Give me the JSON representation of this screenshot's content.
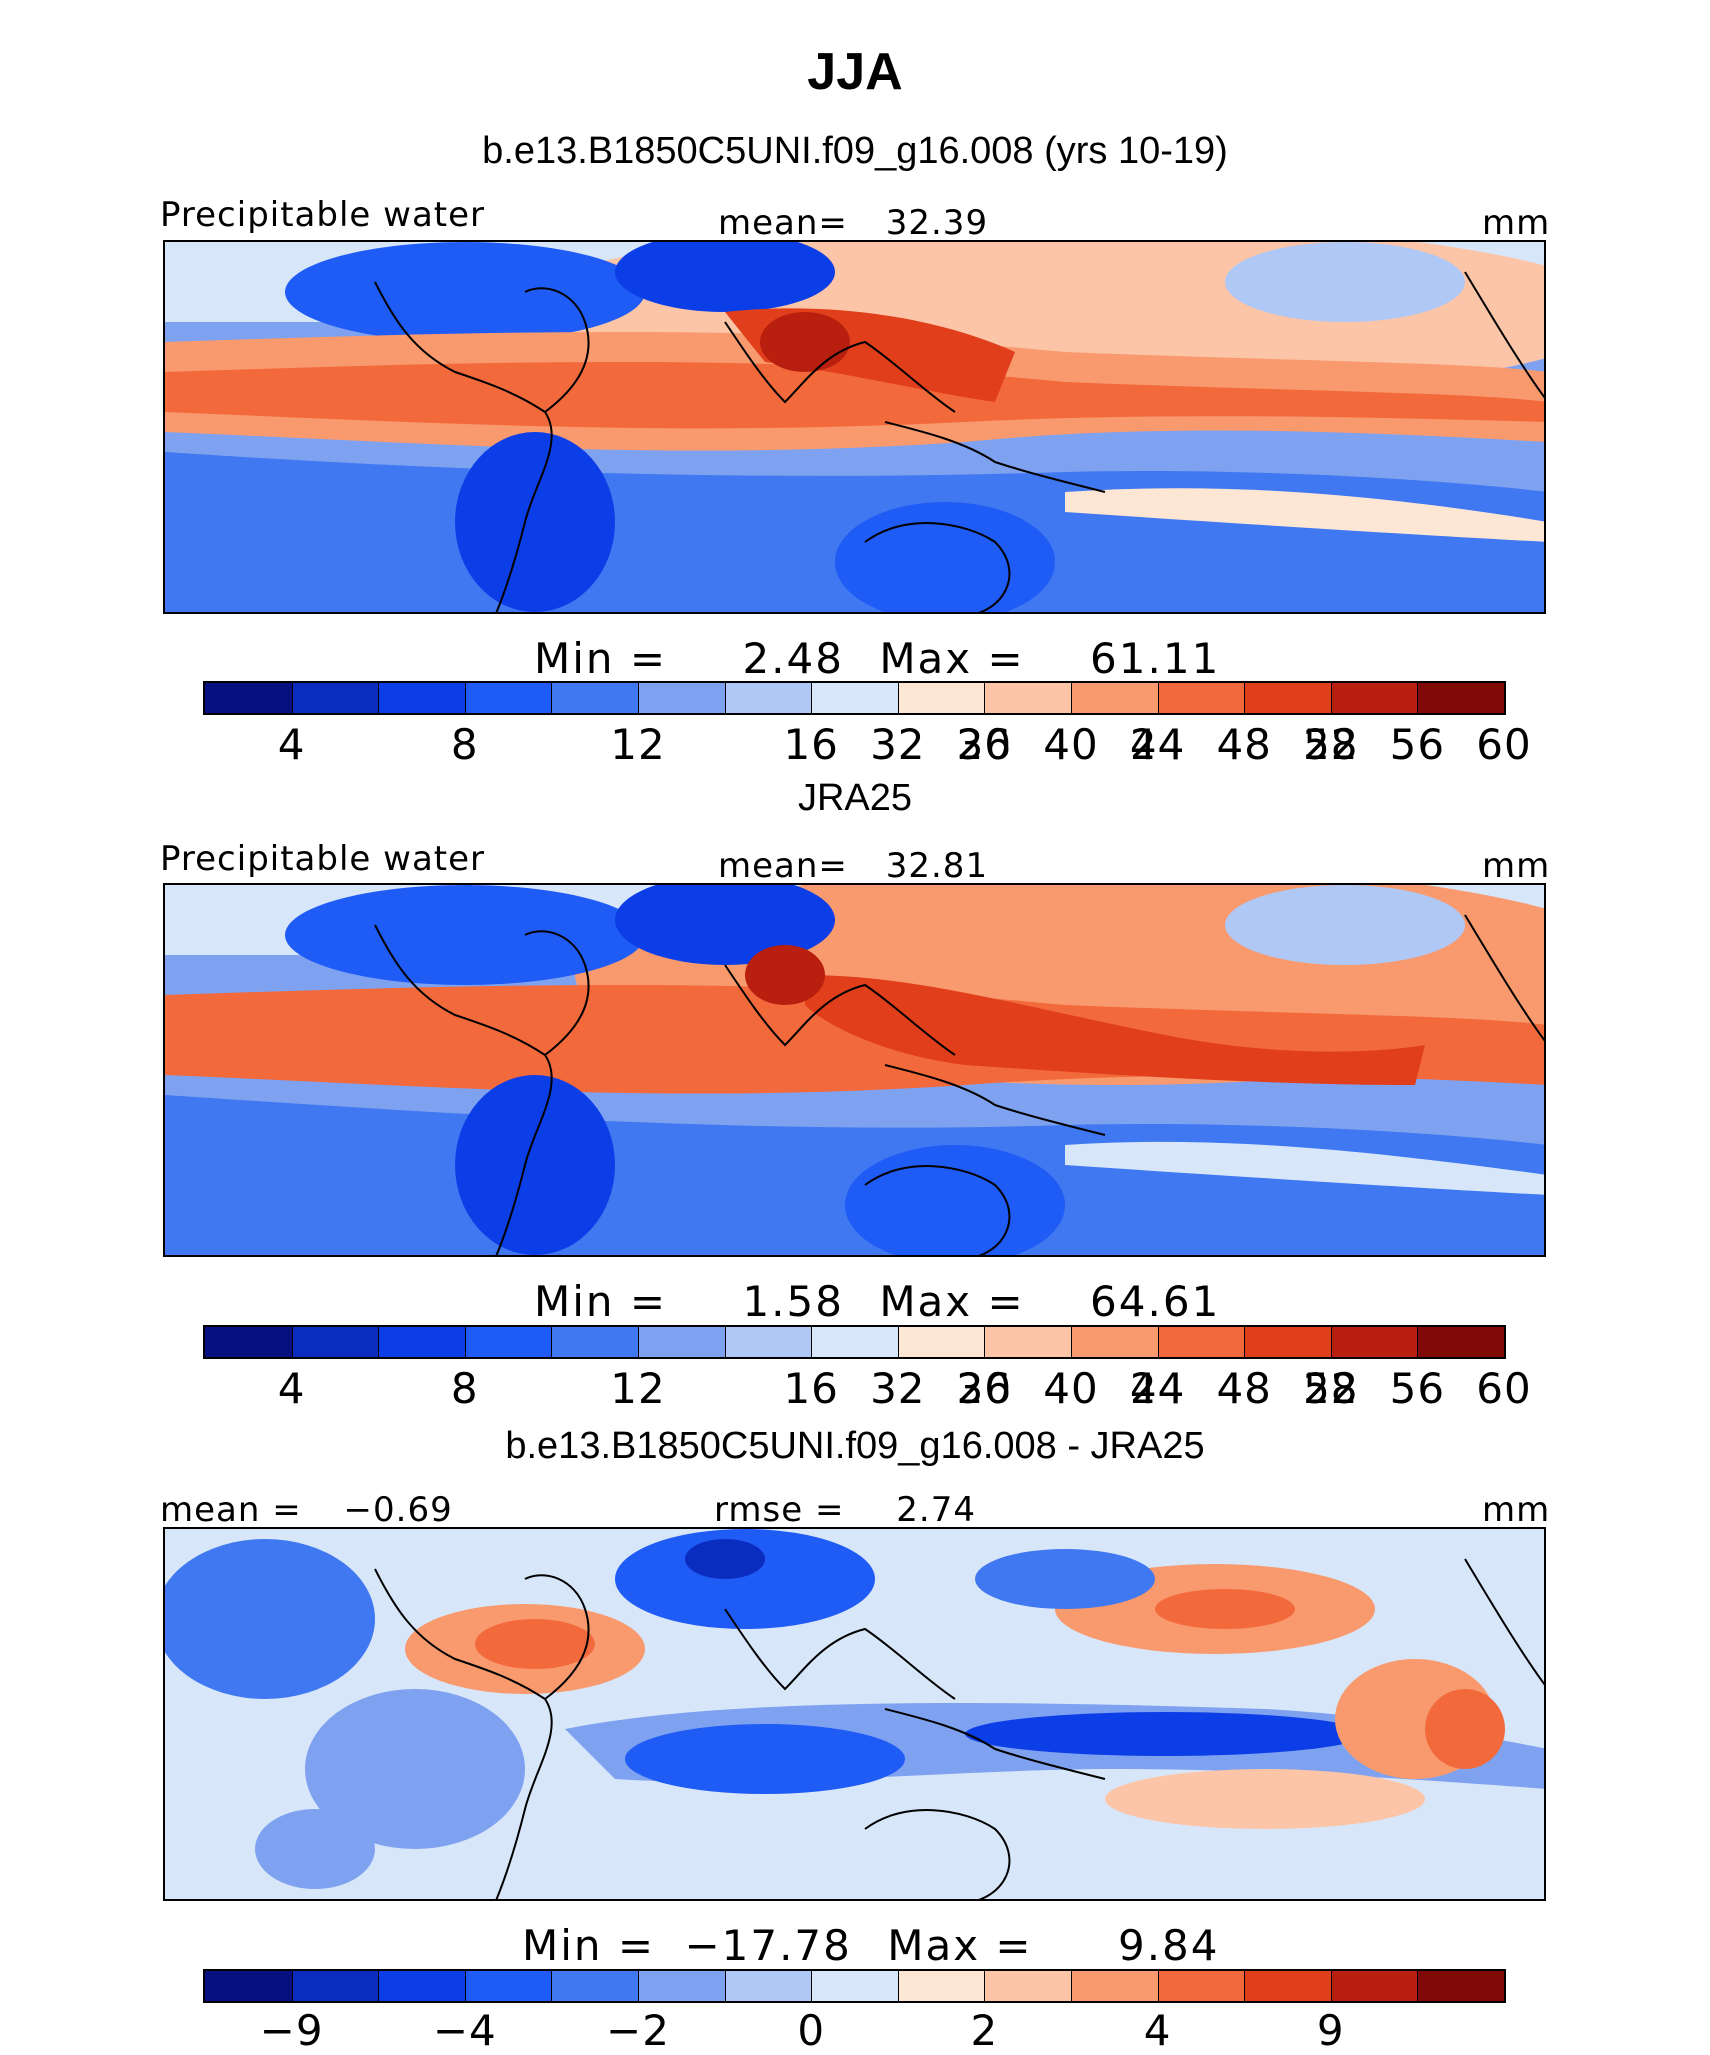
{
  "figure": {
    "season": "JJA"
  },
  "chart_data": [
    {
      "type": "heatmap",
      "subtitle": "b.e13.B1850C5UNI.f09_g16.008 (yrs 10-19)",
      "variable": "Precipitable water",
      "mean_label": "mean=",
      "mean": "32.39",
      "units": "mm",
      "min_label": "Min =",
      "min": "2.48",
      "max_label": "Max =",
      "max": "61.11",
      "colorbar_ticks": [
        "4",
        "8",
        "12",
        "16",
        "20",
        "24",
        "28",
        "32",
        "36",
        "40",
        "44",
        "48",
        "52",
        "56",
        "60"
      ],
      "colorbar_colors": [
        "#06107f",
        "#0a2dc0",
        "#0b3ee6",
        "#1f5bf5",
        "#3f78f0",
        "#7fa2f0",
        "#b0c8f5",
        "#d8e6fa",
        "#fde6d4",
        "#fcc5a7",
        "#f89a6e",
        "#f26a3c",
        "#e13e1b",
        "#b81f0e",
        "#810a08"
      ],
      "lon_range": [
        -20,
        285
      ],
      "lat_range": [
        -40,
        40
      ]
    },
    {
      "type": "heatmap",
      "subtitle": "JRA25",
      "variable": "Precipitable water",
      "mean_label": "mean=",
      "mean": "32.81",
      "units": "mm",
      "min_label": "Min =",
      "min": "1.58",
      "max_label": "Max =",
      "max": "64.61",
      "colorbar_ticks": [
        "4",
        "8",
        "12",
        "16",
        "20",
        "24",
        "28",
        "32",
        "36",
        "40",
        "44",
        "48",
        "52",
        "56",
        "60"
      ],
      "colorbar_colors": [
        "#06107f",
        "#0a2dc0",
        "#0b3ee6",
        "#1f5bf5",
        "#3f78f0",
        "#7fa2f0",
        "#b0c8f5",
        "#d8e6fa",
        "#fde6d4",
        "#fcc5a7",
        "#f89a6e",
        "#f26a3c",
        "#e13e1b",
        "#b81f0e",
        "#810a08"
      ],
      "lon_range": [
        -20,
        285
      ],
      "lat_range": [
        -40,
        40
      ]
    },
    {
      "type": "heatmap",
      "subtitle": "b.e13.B1850C5UNI.f09_g16.008 - JRA25",
      "mean_label": "mean =",
      "mean": "−0.69",
      "rmse_label": "rmse =",
      "rmse": "2.74",
      "units": "mm",
      "min_label": "Min =",
      "min": "−17.78",
      "max_label": "Max =",
      "max": "9.84",
      "colorbar_ticks": [
        "−9",
        "−4",
        "−2",
        "0",
        "2",
        "4",
        "9"
      ],
      "colorbar_colors": [
        "#06107f",
        "#0a2dc0",
        "#0b3ee6",
        "#1f5bf5",
        "#3f78f0",
        "#7fa2f0",
        "#b0c8f5",
        "#d8e6fa",
        "#fde6d4",
        "#fcc5a7",
        "#f89a6e",
        "#f26a3c",
        "#e13e1b",
        "#b81f0e",
        "#810a08"
      ],
      "lon_range": [
        -20,
        285
      ],
      "lat_range": [
        -40,
        40
      ]
    }
  ]
}
